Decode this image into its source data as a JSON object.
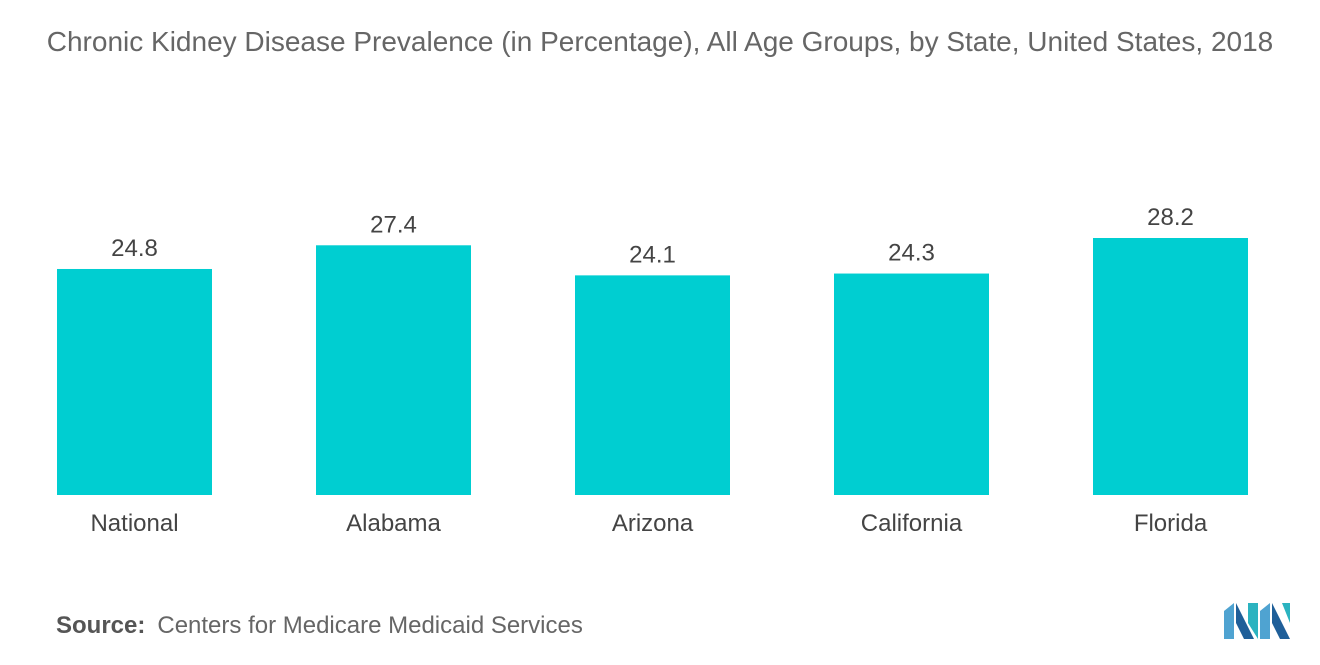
{
  "chart_data": {
    "type": "bar",
    "title": "Chronic Kidney Disease Prevalence (in Percentage), All Age Groups, by State, United States, 2018",
    "categories": [
      "National",
      "Alabama",
      "Arizona",
      "California",
      "Florida"
    ],
    "values": [
      24.8,
      27.4,
      24.1,
      24.3,
      28.2
    ],
    "xlabel": "",
    "ylabel": "",
    "ylim": [
      0,
      28.2
    ],
    "grid": false,
    "legend": "none",
    "bar_color": "#00CED1"
  },
  "source": {
    "label": "Source:",
    "text": "Centers for Medicare Medicaid Services"
  },
  "logo": {
    "icon": "mordor-intelligence-logo-icon",
    "colors": [
      "#4FA3D1",
      "#1F5F99",
      "#2BB3C0"
    ]
  }
}
